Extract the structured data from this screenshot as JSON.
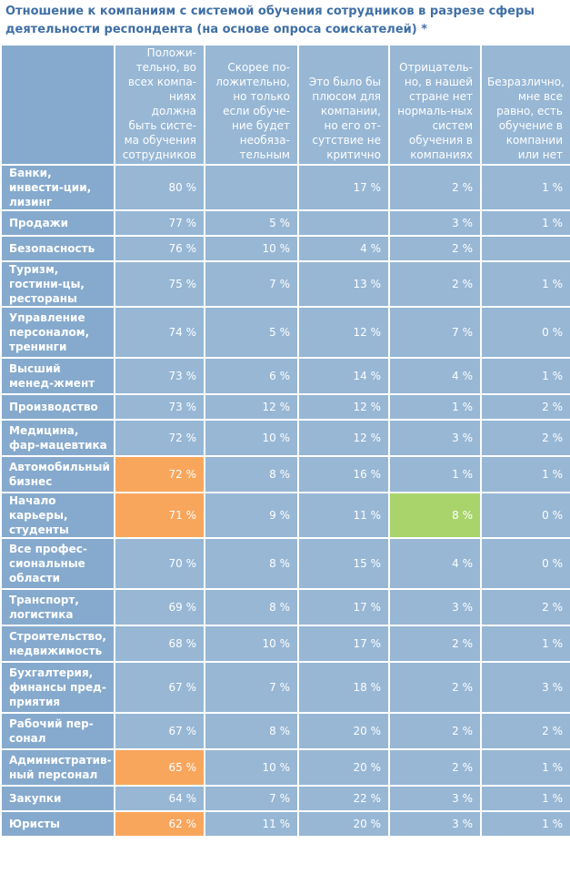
{
  "chart_data": {
    "type": "table",
    "title": "Отношение к компаниям с системой обучения сотрудников в разрезе сферы деятельности респондента (на основе опроса соискателей) *",
    "columns": [
      "Положи-тельно, во всех компа-ниях должна быть систе-ма обучения сотрудников",
      "Скорее по-ложительно, но только если обуче-ние будет необяза-тельным",
      "Это было бы плюсом для компании, но его от-сутствие не критично",
      "Отрицатель-но, в нашей стране нет нормаль-ных систем обучения в компаниях",
      "Безразлично, мне все равно, есть обучение в компании или нет"
    ],
    "rows": [
      {
        "label": "Банки, инвести-ции, лизинг",
        "values": [
          "80 %",
          "",
          "17 %",
          "2 %",
          "1 %"
        ],
        "highlight": [
          null,
          null,
          null,
          null,
          null
        ]
      },
      {
        "label": "Продажи",
        "values": [
          "77 %",
          "5 %",
          "",
          "3 %",
          "1 %"
        ],
        "highlight": [
          null,
          null,
          null,
          null,
          null
        ]
      },
      {
        "label": "Безопасность",
        "values": [
          "76 %",
          "10 %",
          "4 %",
          "2 %",
          ""
        ],
        "highlight": [
          null,
          null,
          null,
          null,
          null
        ]
      },
      {
        "label": "Туризм, гостини-цы, рестораны",
        "values": [
          "75 %",
          "7 %",
          "13 %",
          "2 %",
          "1 %"
        ],
        "highlight": [
          null,
          null,
          null,
          null,
          null
        ]
      },
      {
        "label": "Управление персоналом, тренинги",
        "values": [
          "74 %",
          "5 %",
          "12 %",
          "7 %",
          "0 %"
        ],
        "highlight": [
          null,
          null,
          null,
          null,
          null
        ]
      },
      {
        "label": "Высший менед-жмент",
        "values": [
          "73 %",
          "6 %",
          "14 %",
          "4 %",
          "1 %"
        ],
        "highlight": [
          null,
          null,
          null,
          null,
          null
        ]
      },
      {
        "label": "Производство",
        "values": [
          "73 %",
          "12 %",
          "12 %",
          "1 %",
          "2 %"
        ],
        "highlight": [
          null,
          null,
          null,
          null,
          null
        ]
      },
      {
        "label": "Медицина, фар-мацевтика",
        "values": [
          "72 %",
          "10 %",
          "12 %",
          "3 %",
          "2 %"
        ],
        "highlight": [
          null,
          null,
          null,
          null,
          null
        ]
      },
      {
        "label": "Автомобильный бизнес",
        "values": [
          "72 %",
          "8 %",
          "16 %",
          "1 %",
          "1 %"
        ],
        "highlight": [
          "orange",
          null,
          null,
          null,
          null
        ]
      },
      {
        "label": "Начало карьеры, студенты",
        "values": [
          "71 %",
          "9 %",
          "11 %",
          "8 %",
          "0 %"
        ],
        "highlight": [
          "orange",
          null,
          null,
          "green",
          null
        ]
      },
      {
        "label": "Все профес-сиональные области",
        "values": [
          "70 %",
          "8 %",
          "15 %",
          "4 %",
          "0 %"
        ],
        "highlight": [
          null,
          null,
          null,
          null,
          null
        ]
      },
      {
        "label": "Транспорт, логистика",
        "values": [
          "69 %",
          "8 %",
          "17 %",
          "3 %",
          "2 %"
        ],
        "highlight": [
          null,
          null,
          null,
          null,
          null
        ]
      },
      {
        "label": "Строительство, недвижимость",
        "values": [
          "68 %",
          "10 %",
          "17 %",
          "2 %",
          "1 %"
        ],
        "highlight": [
          null,
          null,
          null,
          null,
          null
        ]
      },
      {
        "label": "Бухгалтерия, финансы пред-приятия",
        "values": [
          "67 %",
          "7 %",
          "18 %",
          "2 %",
          "3 %"
        ],
        "highlight": [
          null,
          null,
          null,
          null,
          null
        ]
      },
      {
        "label": "Рабочий пер-сонал",
        "values": [
          "67 %",
          "8 %",
          "20 %",
          "2 %",
          "2 %"
        ],
        "highlight": [
          null,
          null,
          null,
          null,
          null
        ]
      },
      {
        "label": "Административ-ный персонал",
        "values": [
          "65 %",
          "10 %",
          "20 %",
          "2 %",
          "1 %"
        ],
        "highlight": [
          "orange",
          null,
          null,
          null,
          null
        ]
      },
      {
        "label": "Закупки",
        "values": [
          "64 %",
          "7 %",
          "22 %",
          "3 %",
          "1 %"
        ],
        "highlight": [
          null,
          null,
          null,
          null,
          null
        ]
      },
      {
        "label": "Юристы",
        "values": [
          "62 %",
          "11 %",
          "20 %",
          "3 %",
          "1 %"
        ],
        "highlight": [
          "orange",
          null,
          null,
          null,
          null
        ]
      }
    ],
    "colors": {
      "title": "#3f6fa5",
      "cell": "#97b7d5",
      "label_cell": "#86aacd",
      "highlight_orange": "#f9a65d",
      "highlight_green": "#a8d46b"
    }
  }
}
